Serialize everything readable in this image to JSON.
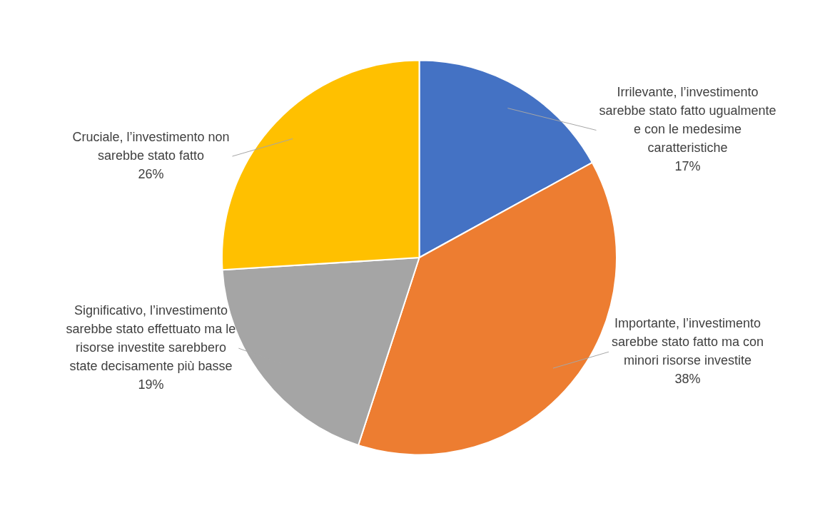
{
  "chart_data": {
    "type": "pie",
    "categories": [
      "Irrilevante, l’investimento sarebbe stato fatto ugualmente e con le medesime caratteristiche",
      "Importante, l’investimento sarebbe stato fatto ma con minori risorse investite",
      "Significativo, l’investimento sarebbe stato effettuato ma le risorse investite sarebbero state decisamente più basse",
      "Cruciale, l’investimento non sarebbe stato fatto"
    ],
    "values": [
      17,
      38,
      19,
      26
    ],
    "colors": [
      "#4472c4",
      "#ed7d31",
      "#a5a5a5",
      "#ffc000"
    ],
    "value_labels": [
      "17%",
      "38%",
      "19%",
      "26%"
    ],
    "legend": false
  }
}
